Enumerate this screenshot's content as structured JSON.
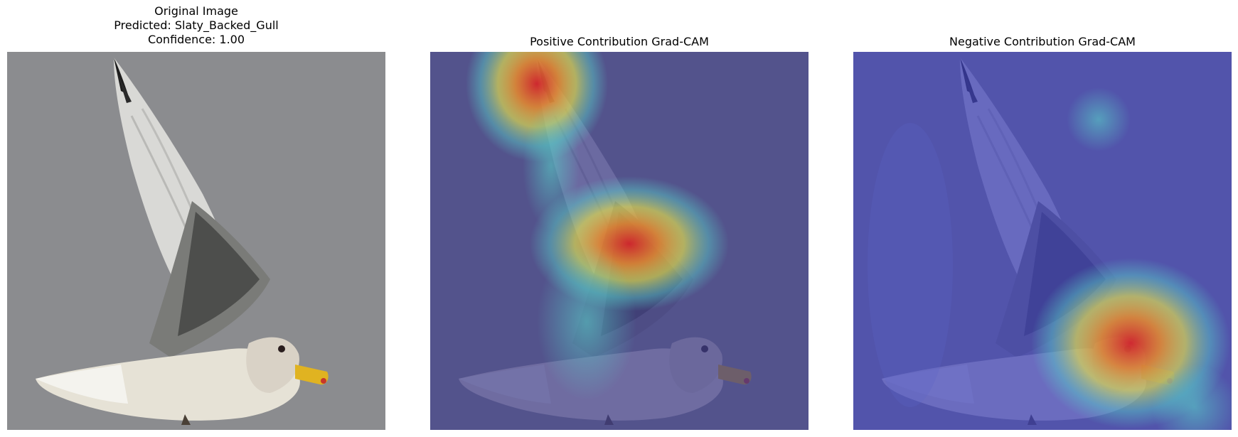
{
  "panels": [
    {
      "lines": [
        "Original Image",
        "Predicted: Slaty_Backed_Gull",
        "Confidence: 1.00"
      ]
    },
    {
      "lines": [
        "Positive Contribution Grad-CAM"
      ]
    },
    {
      "lines": [
        "Negative Contribution Grad-CAM"
      ]
    }
  ],
  "colors": {
    "sky": "#8b8c8f",
    "overlay_low": "#4a4fb0",
    "heat_high": "#e0302a",
    "heat_mid": "#f2e24a",
    "heat_cool": "#58d0c8"
  },
  "icons": [
    "gull-photo",
    "gradcam-positive-heatmap",
    "gradcam-negative-heatmap"
  ]
}
